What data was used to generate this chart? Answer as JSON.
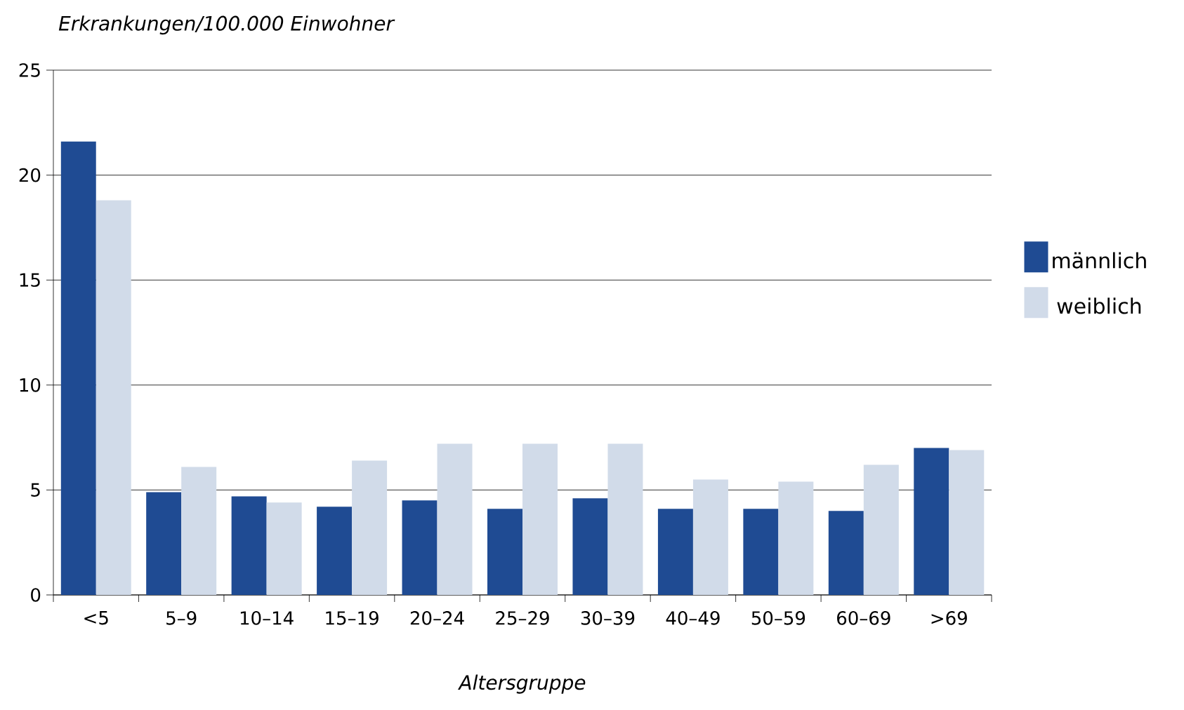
{
  "chart_data": {
    "type": "bar",
    "ylabel": "Erkrankungen/100.000 Einwohner",
    "xlabel": "Altersgruppe",
    "categories": [
      "<5",
      "5–9",
      "10–14",
      "15–19",
      "20–24",
      "25–29",
      "30–39",
      "40–49",
      "50–59",
      "60–69",
      ">69"
    ],
    "series": [
      {
        "name": "männlich",
        "color": "#1f4b93",
        "values": [
          21.6,
          4.9,
          4.7,
          4.2,
          4.5,
          4.1,
          4.6,
          4.1,
          4.1,
          4.0,
          7.0
        ]
      },
      {
        "name": "weiblich",
        "color": "#d1dbe9",
        "values": [
          18.8,
          6.1,
          4.4,
          6.4,
          7.2,
          7.2,
          7.2,
          5.5,
          5.4,
          6.2,
          6.9
        ]
      }
    ],
    "ylim": [
      0,
      25
    ],
    "yticks": [
      0,
      5,
      10,
      15,
      20,
      25
    ],
    "grid": "y",
    "legend": "right"
  }
}
